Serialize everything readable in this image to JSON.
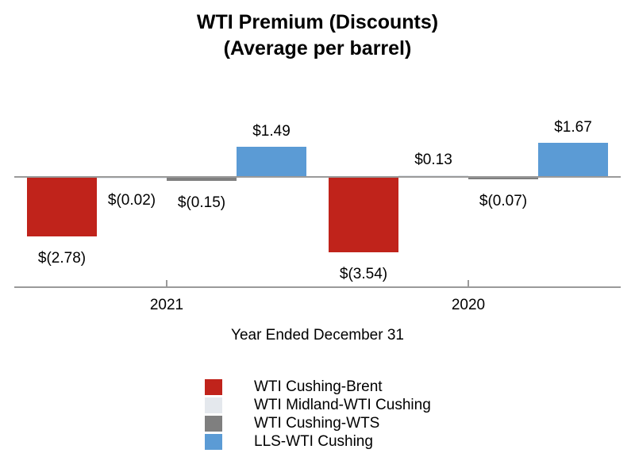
{
  "title": {
    "line1": "WTI Premium (Discounts)",
    "line2": "(Average per barrel)"
  },
  "chart_data": {
    "type": "bar",
    "title": "WTI Premium (Discounts) (Average per barrel)",
    "xlabel": "Year Ended December 31",
    "ylabel": "",
    "categories": [
      "2021",
      "2020"
    ],
    "series": [
      {
        "name": "WTI Cushing-Brent",
        "color": "#c0231b",
        "values": [
          -2.78,
          -3.54
        ],
        "labels": [
          "$(2.78)",
          "$(3.54)"
        ]
      },
      {
        "name": "WTI Midland-WTI Cushing",
        "color": "#e4e8ed",
        "values": [
          -0.02,
          0.13
        ],
        "labels": [
          "$(0.02)",
          "$0.13"
        ]
      },
      {
        "name": "WTI Cushing-WTS",
        "color": "#7f7f7f",
        "values": [
          -0.15,
          -0.07
        ],
        "labels": [
          "$(0.15)",
          "$(0.07)"
        ]
      },
      {
        "name": "LLS-WTI Cushing",
        "color": "#5b9bd5",
        "values": [
          1.49,
          1.67
        ],
        "labels": [
          "$1.49",
          "$1.67"
        ]
      }
    ],
    "axis_color": "#9a9a9a",
    "y_axis_visible": false,
    "grid": false,
    "legend_position": "bottom",
    "data_labels_visible": true
  }
}
